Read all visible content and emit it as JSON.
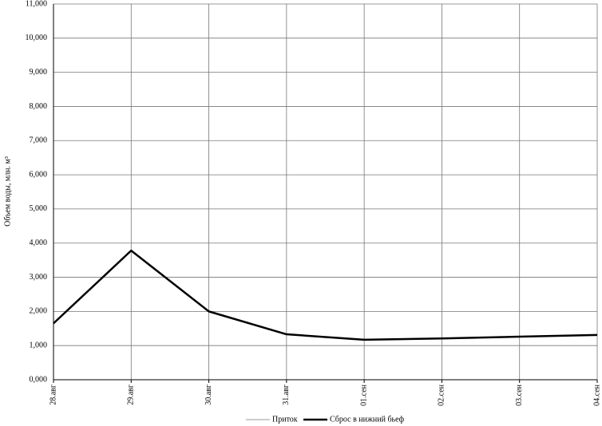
{
  "chart_data": {
    "type": "line",
    "y_label": "Объем воды, млн. м³",
    "categories": [
      "28.авг",
      "29.авг",
      "30.авг",
      "31.авг",
      "01.сен",
      "02.сен",
      "03.сен",
      "04.сен"
    ],
    "series": [
      {
        "name": "Приток",
        "color": "#999999",
        "values": [
          null,
          null,
          null,
          null,
          null,
          null,
          null,
          null
        ]
      },
      {
        "name": "Сброс в нижний бьеф",
        "color": "#000000",
        "values": [
          1650,
          3780,
          2000,
          1330,
          1170,
          1210,
          1260,
          1310
        ]
      }
    ],
    "ylim": [
      0,
      11000
    ],
    "yticks": [
      {
        "value": 0,
        "label": "0,000"
      },
      {
        "value": 1000,
        "label": "1,000"
      },
      {
        "value": 2000,
        "label": "2,000"
      },
      {
        "value": 3000,
        "label": "3,000"
      },
      {
        "value": 4000,
        "label": "4,000"
      },
      {
        "value": 5000,
        "label": "5,000"
      },
      {
        "value": 6000,
        "label": "6,000"
      },
      {
        "value": 7000,
        "label": "7,000"
      },
      {
        "value": 8000,
        "label": "8,000"
      },
      {
        "value": 9000,
        "label": "9,000"
      },
      {
        "value": 10000,
        "label": "10,000"
      },
      {
        "value": 11000,
        "label": "11,000"
      }
    ],
    "grid": true
  }
}
